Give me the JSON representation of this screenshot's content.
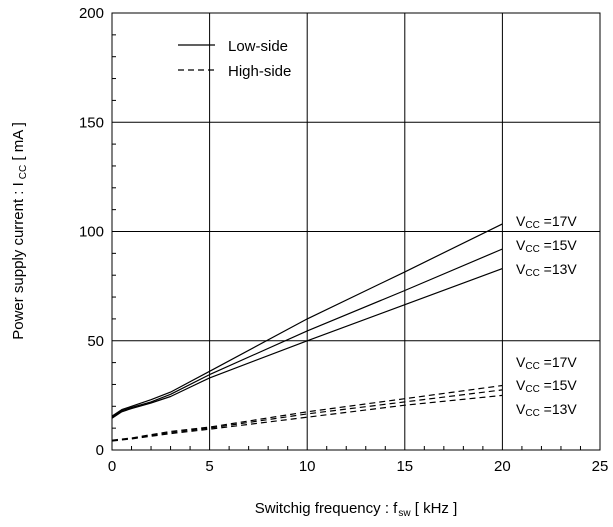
{
  "chart_data": {
    "type": "line",
    "xlabel": {
      "main": "Switchig frequency : f",
      "sub": "sw",
      "unit": " [ kHz ]"
    },
    "ylabel": {
      "main": "Power supply current : I",
      "sub": "CC",
      "unit": " [ mA ]"
    },
    "xlim": [
      0,
      25
    ],
    "ylim": [
      0,
      200
    ],
    "x_ticks": [
      "0",
      "5",
      "10",
      "15",
      "20",
      "25"
    ],
    "y_ticks": [
      "0",
      "50",
      "100",
      "150",
      "200"
    ],
    "grid": true,
    "legend_placement": "top-left",
    "legend": [
      {
        "label": "Low-side",
        "style": "solid"
      },
      {
        "label": "High-side",
        "style": "dashed"
      }
    ],
    "series": [
      {
        "group": "Low-side",
        "label": "VCC =17V",
        "style": "solid",
        "points": [
          [
            0,
            15.5
          ],
          [
            0.5,
            18.5
          ],
          [
            1,
            20
          ],
          [
            2,
            23
          ],
          [
            3,
            26.5
          ],
          [
            5,
            36
          ],
          [
            10,
            60
          ],
          [
            15,
            81.5
          ],
          [
            20,
            103.5
          ]
        ]
      },
      {
        "group": "Low-side",
        "label": "VCC =15V",
        "style": "solid",
        "points": [
          [
            0,
            15
          ],
          [
            0.5,
            18
          ],
          [
            1,
            19.5
          ],
          [
            2,
            22
          ],
          [
            3,
            25.5
          ],
          [
            5,
            34.5
          ],
          [
            10,
            54.5
          ],
          [
            15,
            73
          ],
          [
            20,
            92
          ]
        ]
      },
      {
        "group": "Low-side",
        "label": "VCC =13V",
        "style": "solid",
        "points": [
          [
            0,
            14.5
          ],
          [
            0.5,
            17.5
          ],
          [
            1,
            19
          ],
          [
            2,
            21.5
          ],
          [
            3,
            24.5
          ],
          [
            5,
            33
          ],
          [
            10,
            50
          ],
          [
            15,
            66.5
          ],
          [
            20,
            83
          ]
        ]
      },
      {
        "group": "High-side",
        "label": "VCC =17V",
        "style": "dashed",
        "points": [
          [
            0,
            4.5
          ],
          [
            1,
            5.5
          ],
          [
            3,
            8.5
          ],
          [
            5,
            10.5
          ],
          [
            10,
            17.5
          ],
          [
            15,
            23.5
          ],
          [
            20,
            29.5
          ]
        ]
      },
      {
        "group": "High-side",
        "label": "VCC =15V",
        "style": "dashed",
        "points": [
          [
            0,
            4.3
          ],
          [
            1,
            5.3
          ],
          [
            3,
            8
          ],
          [
            5,
            10
          ],
          [
            10,
            16.5
          ],
          [
            15,
            22
          ],
          [
            20,
            27.5
          ]
        ]
      },
      {
        "group": "High-side",
        "label": "VCC =13V",
        "style": "dashed",
        "points": [
          [
            0,
            4.1
          ],
          [
            1,
            5.1
          ],
          [
            3,
            7.5
          ],
          [
            5,
            9.5
          ],
          [
            10,
            15
          ],
          [
            15,
            20.5
          ],
          [
            20,
            25
          ]
        ]
      }
    ],
    "curve_labels": [
      {
        "pre": "V",
        "sub": "CC",
        "post": " =17V"
      },
      {
        "pre": "V",
        "sub": "CC",
        "post": " =15V"
      },
      {
        "pre": "V",
        "sub": "CC",
        "post": " =13V"
      },
      {
        "pre": "V",
        "sub": "CC",
        "post": " =17V"
      },
      {
        "pre": "V",
        "sub": "CC",
        "post": " =15V"
      },
      {
        "pre": "V",
        "sub": "CC",
        "post": " =13V"
      }
    ]
  }
}
